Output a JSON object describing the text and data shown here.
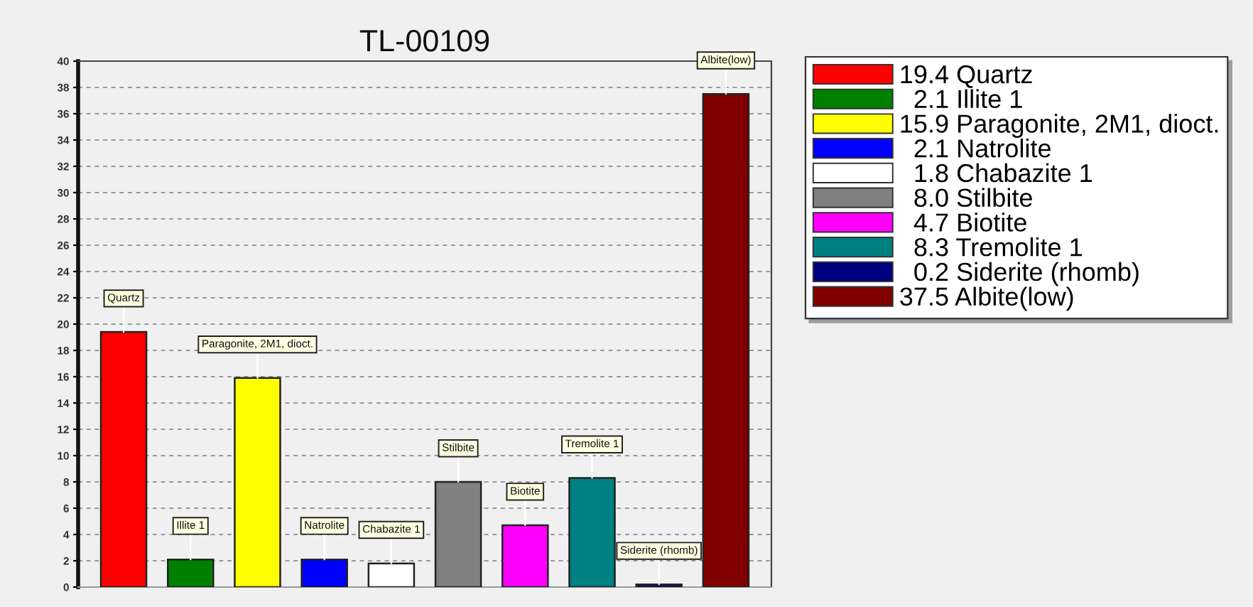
{
  "chart_data": {
    "type": "bar",
    "title": "TL-00109",
    "categories": [
      "Quartz",
      "Illite 1",
      "Paragonite, 2M1, dioct.",
      "Natrolite",
      "Chabazite 1",
      "Stilbite",
      "Biotite",
      "Tremolite 1",
      "Siderite (rhomb)",
      "Albite(low)"
    ],
    "values": [
      19.4,
      2.1,
      15.9,
      2.1,
      1.8,
      8.0,
      4.7,
      8.3,
      0.2,
      37.5
    ],
    "value_labels": [
      "19.4",
      "2.1",
      "15.9",
      "2.1",
      "1.8",
      "8.0",
      "4.7",
      "8.3",
      "0.2",
      "37.5"
    ],
    "colors": [
      "#ff0000",
      "#008000",
      "#ffff00",
      "#0000ff",
      "#ffffff",
      "#808080",
      "#ff00ff",
      "#008080",
      "#000080",
      "#800000"
    ],
    "ylim": [
      0,
      40
    ],
    "yticks": [
      0,
      2,
      4,
      6,
      8,
      10,
      12,
      14,
      16,
      18,
      20,
      22,
      24,
      26,
      28,
      30,
      32,
      34,
      36,
      38,
      40
    ],
    "grid": "y"
  }
}
